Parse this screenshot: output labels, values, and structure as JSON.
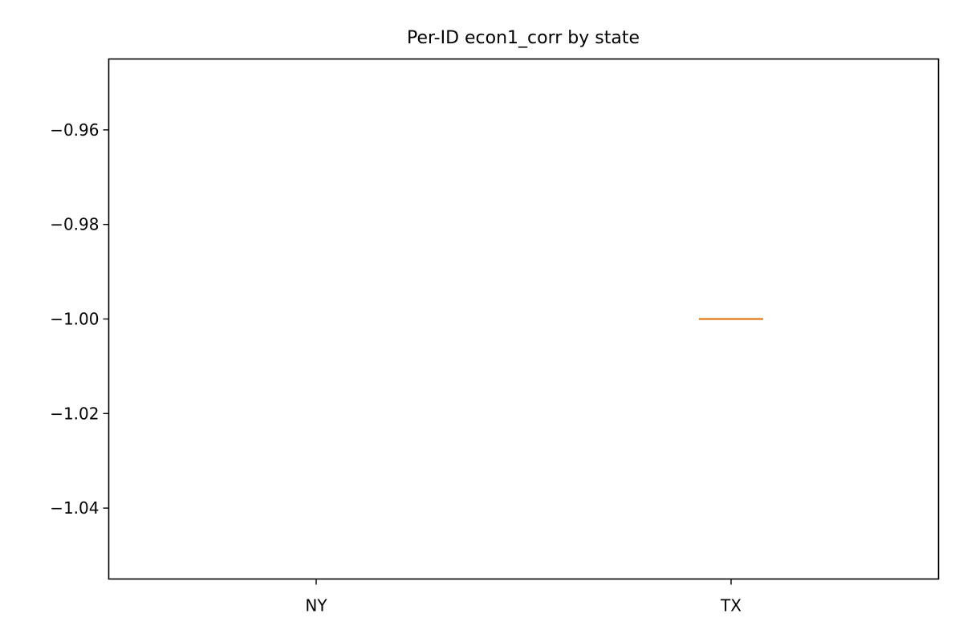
{
  "chart_data": {
    "type": "box",
    "title": "Per-ID econ1_corr by state",
    "xlabel": "",
    "ylabel": "",
    "categories": [
      "NY",
      "TX"
    ],
    "series": [
      {
        "category": "NY",
        "median": null
      },
      {
        "category": "TX",
        "median": -1.0,
        "q1": -1.0,
        "q3": -1.0,
        "whisker_low": -1.0,
        "whisker_high": -1.0
      }
    ],
    "ylim": [
      -1.055,
      -0.945
    ],
    "yticks": [
      -0.96,
      -0.98,
      -1.0,
      -1.02,
      -1.04
    ],
    "ytick_labels": [
      "−0.96",
      "−0.98",
      "−1.00",
      "−1.02",
      "−1.04"
    ],
    "grid": false,
    "median_color": "#e07b18"
  }
}
